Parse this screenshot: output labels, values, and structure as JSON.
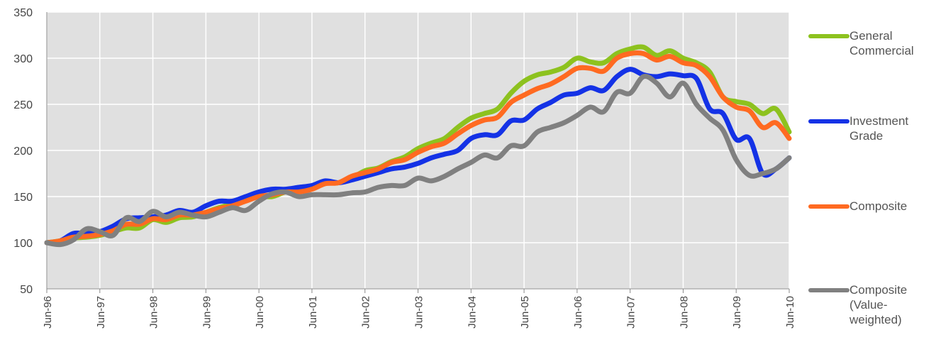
{
  "chart_data": {
    "type": "line",
    "categories": [
      "Jun-96",
      null,
      null,
      null,
      "Jun-97",
      null,
      null,
      null,
      "Jun-98",
      null,
      null,
      null,
      "Jun-99",
      null,
      null,
      null,
      "Jun-00",
      null,
      null,
      null,
      "Jun-01",
      null,
      null,
      null,
      "Jun-02",
      null,
      null,
      null,
      "Jun-03",
      null,
      null,
      null,
      "Jun-04",
      null,
      null,
      null,
      "Jun-05",
      null,
      null,
      null,
      "Jun-06",
      null,
      null,
      null,
      "Jun-07",
      null,
      null,
      null,
      "Jun-08",
      null,
      null,
      null,
      "Jun-09",
      null,
      null,
      null,
      "Jun-10"
    ],
    "series": [
      {
        "name": "General Commercial",
        "color": "#8dc21f",
        "values": [
          100,
          102,
          105,
          106,
          108,
          112,
          116,
          116,
          125,
          122,
          127,
          128,
          133,
          138,
          142,
          146,
          150,
          150,
          155,
          157,
          160,
          165,
          165,
          170,
          178,
          181,
          188,
          193,
          202,
          208,
          213,
          225,
          235,
          240,
          245,
          262,
          275,
          282,
          285,
          290,
          300,
          296,
          295,
          305,
          310,
          312,
          303,
          308,
          300,
          295,
          285,
          258,
          253,
          250,
          240,
          245,
          220
        ]
      },
      {
        "name": "Investment Grade",
        "color": "#1432e6",
        "values": [
          100,
          102,
          110,
          110,
          112,
          118,
          126,
          127,
          128,
          130,
          135,
          133,
          140,
          145,
          145,
          150,
          155,
          158,
          158,
          160,
          162,
          167,
          165,
          168,
          172,
          176,
          180,
          182,
          186,
          192,
          196,
          200,
          213,
          217,
          217,
          232,
          233,
          245,
          252,
          260,
          262,
          268,
          265,
          280,
          288,
          282,
          280,
          283,
          281,
          278,
          245,
          240,
          212,
          213,
          175,
          180,
          192
        ]
      },
      {
        "name": "Composite",
        "color": "#ff6a21",
        "values": [
          100,
          102,
          106,
          107,
          109,
          113,
          120,
          120,
          126,
          125,
          130,
          130,
          133,
          137,
          140,
          145,
          150,
          152,
          155,
          155,
          158,
          164,
          165,
          172,
          176,
          180,
          187,
          190,
          198,
          204,
          208,
          218,
          227,
          233,
          236,
          252,
          260,
          267,
          272,
          280,
          289,
          289,
          286,
          300,
          305,
          305,
          298,
          302,
          295,
          292,
          280,
          258,
          247,
          243,
          225,
          230,
          213
        ]
      },
      {
        "name": "Composite (Value-weighted)",
        "color": "#808080",
        "values": [
          100,
          98,
          103,
          115,
          112,
          108,
          127,
          123,
          134,
          128,
          133,
          130,
          128,
          133,
          138,
          135,
          145,
          153,
          155,
          150,
          152,
          152,
          152,
          154,
          155,
          160,
          162,
          162,
          170,
          167,
          172,
          180,
          187,
          195,
          192,
          205,
          205,
          220,
          225,
          230,
          238,
          247,
          242,
          263,
          262,
          280,
          273,
          258,
          273,
          250,
          235,
          222,
          190,
          173,
          175,
          180,
          192
        ]
      }
    ],
    "ylim": [
      50,
      350
    ],
    "yticks": [
      50,
      100,
      150,
      200,
      250,
      300,
      350
    ],
    "grid": true,
    "legend": "right"
  }
}
